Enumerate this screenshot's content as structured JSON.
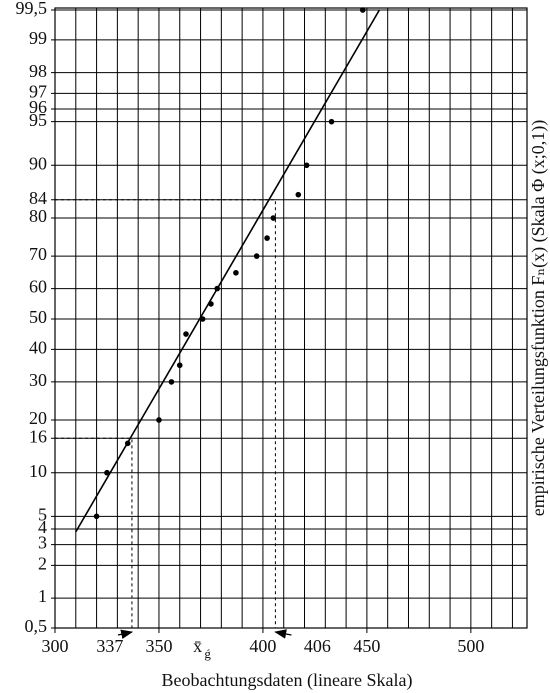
{
  "chart_data": {
    "type": "probability-plot",
    "x_label": "Beobachtungsdaten (lineare Skala)",
    "y_label": "empirische Verteilungsfunktion Fₙ(x) (Skala Φ (x;0,1))",
    "xlim": [
      300,
      527
    ],
    "ylim": [
      0.5,
      99.5
    ],
    "xticks": [
      300,
      350,
      400,
      450,
      500
    ],
    "xgrid": [
      310,
      320,
      330,
      340,
      360,
      370,
      380,
      390,
      410,
      420,
      430,
      440,
      460,
      470,
      480,
      490,
      510,
      520
    ],
    "yticks": [
      {
        "value": 0.5,
        "label": "0,5"
      },
      1,
      2,
      3,
      4,
      5,
      10,
      16,
      20,
      30,
      40,
      50,
      60,
      70,
      80,
      84,
      90,
      95,
      96,
      97,
      98,
      99,
      {
        "value": 99.5,
        "label": "99,5"
      }
    ],
    "series": [
      {
        "x": [
          320,
          325,
          335,
          350,
          356,
          360,
          363,
          371,
          375,
          378,
          387,
          397,
          402,
          405,
          417,
          421,
          433,
          448
        ],
        "values": [
          5,
          10,
          15,
          20,
          30,
          35,
          45,
          50,
          55,
          60,
          65,
          70,
          75,
          80,
          85,
          90,
          95,
          99.5
        ],
        "color": "#000000"
      }
    ],
    "fit_line": {
      "x": [
        310,
        456
      ],
      "values": [
        3.8,
        99.5
      ],
      "color": "#000000"
    },
    "guides": [
      {
        "x": 337,
        "y": 16,
        "label": "337",
        "arrow": "right"
      },
      {
        "x": 406,
        "y": 84,
        "label": "406",
        "arrow": "left"
      }
    ],
    "mean_marker": {
      "x": 371.5,
      "label": "x̄",
      "sub": "ǵ"
    },
    "grid": true
  }
}
